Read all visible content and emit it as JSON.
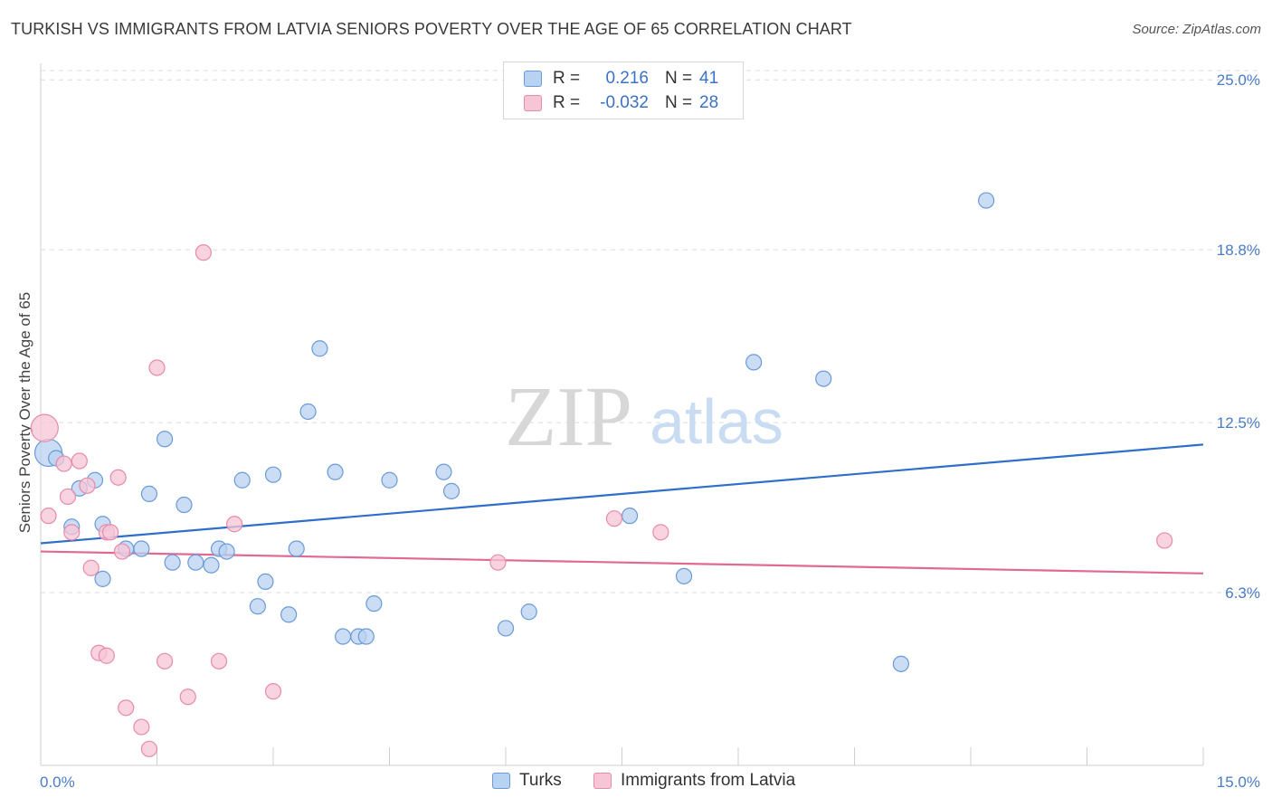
{
  "title": "TURKISH VS IMMIGRANTS FROM LATVIA SENIORS POVERTY OVER THE AGE OF 65 CORRELATION CHART",
  "source": "Source: ZipAtlas.com",
  "watermark": {
    "zip": "ZIP",
    "atlas": "atlas"
  },
  "colors": {
    "turks_fill": "#b8d2f2",
    "turks_stroke": "#6a9ad8",
    "turks_line": "#2f6fca",
    "latvia_fill": "#f7c6d6",
    "latvia_stroke": "#e88aaa",
    "latvia_line": "#e06a93",
    "tick_text": "#4a7cc7"
  },
  "legend": {
    "rows": [
      {
        "r_label": "R =",
        "r_value": "0.216",
        "n_label": "N =",
        "n_value": "41"
      },
      {
        "r_label": "R =",
        "r_value": "-0.032",
        "n_label": "N =",
        "n_value": "28"
      }
    ]
  },
  "bottom_legend": {
    "turks": "Turks",
    "latvia": "Immigrants from Latvia"
  },
  "chart_data": {
    "type": "scatter",
    "title": "TURKISH VS IMMIGRANTS FROM LATVIA SENIORS POVERTY OVER THE AGE OF 65 CORRELATION CHART",
    "xlabel": "",
    "ylabel": "Seniors Poverty Over the Age of 65",
    "xlim": [
      0,
      15
    ],
    "ylim": [
      0,
      25.6
    ],
    "x_tick_labels": [
      "0.0%",
      "15.0%"
    ],
    "y_ticks": [
      6.3,
      12.5,
      18.8,
      25.0
    ],
    "y_tick_labels": [
      "6.3%",
      "12.5%",
      "18.8%",
      "25.0%"
    ],
    "grid": true,
    "legend_position": "top-center",
    "series": [
      {
        "name": "Turks",
        "points": [
          [
            0.1,
            11.4
          ],
          [
            0.2,
            11.2
          ],
          [
            0.5,
            10.1
          ],
          [
            0.4,
            8.7
          ],
          [
            0.7,
            10.4
          ],
          [
            0.8,
            8.8
          ],
          [
            0.8,
            6.8
          ],
          [
            1.1,
            7.9
          ],
          [
            1.3,
            7.9
          ],
          [
            1.4,
            9.9
          ],
          [
            1.6,
            11.9
          ],
          [
            1.7,
            7.4
          ],
          [
            1.85,
            9.5
          ],
          [
            2.0,
            7.4
          ],
          [
            2.2,
            7.3
          ],
          [
            2.3,
            7.9
          ],
          [
            2.4,
            7.8
          ],
          [
            2.6,
            10.4
          ],
          [
            2.8,
            5.8
          ],
          [
            2.9,
            6.7
          ],
          [
            3.0,
            10.6
          ],
          [
            3.2,
            5.5
          ],
          [
            3.3,
            7.9
          ],
          [
            3.45,
            12.9
          ],
          [
            3.6,
            15.2
          ],
          [
            3.8,
            10.7
          ],
          [
            3.9,
            4.7
          ],
          [
            4.1,
            4.7
          ],
          [
            4.2,
            4.7
          ],
          [
            4.3,
            5.9
          ],
          [
            4.5,
            10.4
          ],
          [
            5.2,
            10.7
          ],
          [
            5.3,
            10.0
          ],
          [
            6.0,
            5.0
          ],
          [
            6.3,
            5.6
          ],
          [
            7.6,
            9.1
          ],
          [
            8.3,
            6.9
          ],
          [
            9.2,
            14.7
          ],
          [
            10.1,
            14.1
          ],
          [
            11.1,
            3.7
          ],
          [
            12.2,
            20.6
          ]
        ]
      },
      {
        "name": "Immigrants from Latvia",
        "points": [
          [
            0.05,
            12.3
          ],
          [
            0.1,
            9.1
          ],
          [
            0.3,
            11.0
          ],
          [
            0.35,
            9.8
          ],
          [
            0.4,
            8.5
          ],
          [
            0.5,
            11.1
          ],
          [
            0.6,
            10.2
          ],
          [
            0.65,
            7.2
          ],
          [
            0.75,
            4.1
          ],
          [
            0.85,
            4.0
          ],
          [
            0.85,
            8.5
          ],
          [
            0.9,
            8.5
          ],
          [
            1.0,
            10.5
          ],
          [
            1.05,
            7.8
          ],
          [
            1.1,
            2.1
          ],
          [
            1.3,
            1.4
          ],
          [
            1.4,
            0.6
          ],
          [
            1.5,
            14.5
          ],
          [
            1.6,
            3.8
          ],
          [
            1.9,
            2.5
          ],
          [
            2.1,
            18.7
          ],
          [
            2.3,
            3.8
          ],
          [
            2.5,
            8.8
          ],
          [
            3.0,
            2.7
          ],
          [
            5.9,
            7.4
          ],
          [
            7.4,
            9.0
          ],
          [
            8.0,
            8.5
          ],
          [
            14.5,
            8.2
          ]
        ]
      }
    ],
    "trend_lines": [
      {
        "name": "Turks",
        "from": [
          0,
          8.1
        ],
        "to": [
          15,
          11.7
        ]
      },
      {
        "name": "Immigrants from Latvia",
        "from": [
          0,
          7.8
        ],
        "to": [
          15,
          7.0
        ]
      }
    ]
  }
}
